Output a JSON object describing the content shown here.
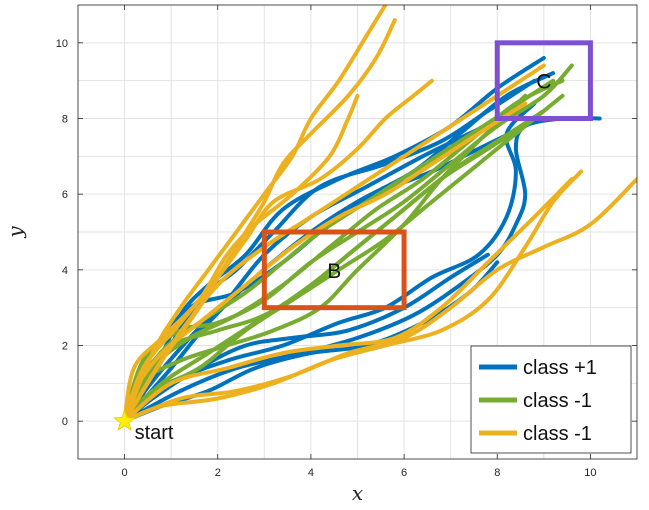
{
  "chart_data": {
    "type": "line",
    "title": "",
    "xlabel": "x",
    "ylabel": "y",
    "xlim": [
      -1,
      11
    ],
    "ylim": [
      -1,
      11
    ],
    "xticks": [
      0,
      2,
      4,
      6,
      8,
      10
    ],
    "yticks": [
      0,
      2,
      4,
      6,
      8,
      10
    ],
    "grid": true,
    "legend_position": "bottom-right",
    "start": {
      "x": 0,
      "y": 0,
      "label": "start",
      "color": "#ffee00"
    },
    "regions": [
      {
        "label": "B",
        "x": [
          3,
          6
        ],
        "y": [
          3,
          5
        ],
        "color": "#d95319"
      },
      {
        "label": "C",
        "x": [
          8,
          10
        ],
        "y": [
          8,
          10
        ],
        "color": "#7e4fd0"
      }
    ],
    "series": [
      {
        "name": "class +1",
        "color": "#0072bd",
        "trajectories": [
          [
            [
              0,
              0
            ],
            [
              0.6,
              1.2
            ],
            [
              1.2,
              2.8
            ],
            [
              1.8,
              3.6
            ],
            [
              2.6,
              4.4
            ],
            [
              3.4,
              5.6
            ],
            [
              4.6,
              6.4
            ],
            [
              5.8,
              7.0
            ],
            [
              7.0,
              7.8
            ],
            [
              8.0,
              8.8
            ],
            [
              9.0,
              9.6
            ]
          ],
          [
            [
              0,
              0
            ],
            [
              0.8,
              1.6
            ],
            [
              1.6,
              3.2
            ],
            [
              2.4,
              4.0
            ],
            [
              3.2,
              5.0
            ],
            [
              4.2,
              6.2
            ],
            [
              5.6,
              6.8
            ],
            [
              6.8,
              7.4
            ],
            [
              7.8,
              8.2
            ],
            [
              8.8,
              9.0
            ]
          ],
          [
            [
              0,
              0
            ],
            [
              0.5,
              0.9
            ],
            [
              1.4,
              2.2
            ],
            [
              2.2,
              3.2
            ],
            [
              3.0,
              4.4
            ],
            [
              4.0,
              5.4
            ],
            [
              5.2,
              6.2
            ],
            [
              6.4,
              7.0
            ],
            [
              7.4,
              7.6
            ],
            [
              8.4,
              8.2
            ]
          ],
          [
            [
              0,
              0
            ],
            [
              1.0,
              1.4
            ],
            [
              1.8,
              2.6
            ],
            [
              2.8,
              3.8
            ],
            [
              4.0,
              5.0
            ],
            [
              5.0,
              5.8
            ],
            [
              6.2,
              6.6
            ],
            [
              7.2,
              7.6
            ],
            [
              8.2,
              8.6
            ],
            [
              9.2,
              9.2
            ]
          ],
          [
            [
              0,
              0
            ],
            [
              1.2,
              0.8
            ],
            [
              2.4,
              1.4
            ],
            [
              3.8,
              1.8
            ],
            [
              5.0,
              2.2
            ],
            [
              6.2,
              2.8
            ],
            [
              7.2,
              3.6
            ],
            [
              8.0,
              4.4
            ],
            [
              8.4,
              5.2
            ],
            [
              8.6,
              6.0
            ],
            [
              8.4,
              7.2
            ],
            [
              8.6,
              7.8
            ],
            [
              9.4,
              8.0
            ],
            [
              10.2,
              8.0
            ]
          ],
          [
            [
              0,
              0
            ],
            [
              1.0,
              1.0
            ],
            [
              2.2,
              1.6
            ],
            [
              3.4,
              2.0
            ],
            [
              4.6,
              2.6
            ],
            [
              5.6,
              3.0
            ],
            [
              6.6,
              3.8
            ],
            [
              7.6,
              4.4
            ],
            [
              8.2,
              5.4
            ],
            [
              8.4,
              6.6
            ],
            [
              8.2,
              7.6
            ],
            [
              8.8,
              8.4
            ]
          ],
          [
            [
              0,
              0
            ],
            [
              0.6,
              0.6
            ],
            [
              1.6,
              1.4
            ],
            [
              2.6,
              2.0
            ],
            [
              3.6,
              2.2
            ],
            [
              4.8,
              2.4
            ],
            [
              6.0,
              3.0
            ],
            [
              7.0,
              3.8
            ],
            [
              7.8,
              4.4
            ]
          ],
          [
            [
              0,
              0
            ],
            [
              0.8,
              0.4
            ],
            [
              1.8,
              0.8
            ],
            [
              2.8,
              1.4
            ],
            [
              4.0,
              1.8
            ],
            [
              5.2,
              2.0
            ],
            [
              6.4,
              2.6
            ],
            [
              7.4,
              3.4
            ],
            [
              8.0,
              4.2
            ]
          ],
          [
            [
              0,
              0
            ],
            [
              0.6,
              1.8
            ],
            [
              1.4,
              3.0
            ],
            [
              2.4,
              3.4
            ],
            [
              3.4,
              4.2
            ],
            [
              4.4,
              5.2
            ],
            [
              5.4,
              6.0
            ],
            [
              6.6,
              6.6
            ],
            [
              7.6,
              7.2
            ],
            [
              8.6,
              7.8
            ]
          ]
        ]
      },
      {
        "name": "class -1",
        "color": "#77ac30",
        "trajectories": [
          [
            [
              0,
              0
            ],
            [
              0.4,
              1.6
            ],
            [
              1.2,
              2.4
            ],
            [
              2.0,
              2.6
            ],
            [
              3.0,
              3.2
            ],
            [
              4.0,
              4.2
            ],
            [
              5.0,
              5.0
            ],
            [
              6.0,
              5.8
            ],
            [
              7.0,
              6.8
            ],
            [
              8.0,
              7.8
            ],
            [
              9.0,
              8.6
            ],
            [
              9.6,
              9.4
            ]
          ],
          [
            [
              0,
              0
            ],
            [
              0.6,
              1.4
            ],
            [
              1.4,
              2.2
            ],
            [
              2.4,
              2.8
            ],
            [
              3.4,
              3.6
            ],
            [
              4.4,
              4.6
            ],
            [
              5.4,
              5.6
            ],
            [
              6.4,
              6.4
            ],
            [
              7.4,
              7.4
            ],
            [
              8.4,
              8.4
            ],
            [
              9.4,
              9.0
            ]
          ],
          [
            [
              0,
              0
            ],
            [
              0.8,
              1.0
            ],
            [
              1.8,
              1.8
            ],
            [
              2.8,
              2.6
            ],
            [
              3.8,
              3.4
            ],
            [
              4.8,
              4.4
            ],
            [
              5.8,
              5.4
            ],
            [
              6.8,
              6.4
            ],
            [
              7.8,
              7.2
            ],
            [
              8.8,
              8.0
            ]
          ],
          [
            [
              0,
              0
            ],
            [
              0.6,
              0.8
            ],
            [
              1.6,
              1.4
            ],
            [
              2.6,
              2.4
            ],
            [
              3.6,
              3.2
            ],
            [
              4.6,
              4.0
            ],
            [
              5.6,
              4.8
            ],
            [
              6.6,
              5.8
            ],
            [
              7.6,
              6.8
            ],
            [
              8.6,
              7.8
            ],
            [
              9.4,
              8.6
            ]
          ],
          [
            [
              0,
              0
            ],
            [
              0.4,
              1.2
            ],
            [
              1.0,
              2.0
            ],
            [
              2.0,
              2.4
            ],
            [
              3.0,
              2.8
            ],
            [
              4.0,
              3.6
            ],
            [
              5.0,
              4.6
            ],
            [
              6.0,
              5.6
            ],
            [
              7.0,
              6.6
            ],
            [
              8.0,
              7.4
            ],
            [
              9.0,
              8.2
            ]
          ],
          [
            [
              0,
              0
            ],
            [
              0.7,
              1.7
            ],
            [
              1.6,
              2.6
            ],
            [
              2.6,
              3.4
            ],
            [
              3.4,
              4.2
            ],
            [
              4.2,
              5.0
            ],
            [
              5.2,
              5.8
            ],
            [
              6.2,
              6.6
            ],
            [
              7.2,
              7.4
            ],
            [
              8.2,
              8.2
            ],
            [
              9.2,
              9.0
            ]
          ],
          [
            [
              0,
              0
            ],
            [
              0.3,
              1.0
            ],
            [
              1.2,
              1.6
            ],
            [
              2.2,
              2.0
            ],
            [
              3.2,
              2.4
            ],
            [
              4.2,
              3.0
            ],
            [
              5.0,
              4.0
            ],
            [
              6.0,
              5.2
            ],
            [
              6.8,
              6.4
            ],
            [
              7.6,
              7.4
            ],
            [
              8.6,
              8.6
            ]
          ]
        ]
      },
      {
        "name": "class -1",
        "color": "#edb120",
        "trajectories": [
          [
            [
              0,
              0
            ],
            [
              0.6,
              1.8
            ],
            [
              1.2,
              3.0
            ],
            [
              1.8,
              4.0
            ],
            [
              2.4,
              5.0
            ],
            [
              3.0,
              6.0
            ],
            [
              3.6,
              7.0
            ],
            [
              4.0,
              8.0
            ],
            [
              4.6,
              9.0
            ],
            [
              5.2,
              10.2
            ],
            [
              5.6,
              11.0
            ]
          ],
          [
            [
              0,
              0
            ],
            [
              0.8,
              1.6
            ],
            [
              1.6,
              3.0
            ],
            [
              2.2,
              4.2
            ],
            [
              2.6,
              5.0
            ],
            [
              3.0,
              5.8
            ],
            [
              3.4,
              6.8
            ],
            [
              4.0,
              7.6
            ],
            [
              4.8,
              8.6
            ],
            [
              5.4,
              9.6
            ],
            [
              5.8,
              10.6
            ]
          ],
          [
            [
              0,
              0
            ],
            [
              0.4,
              1.4
            ],
            [
              1.2,
              2.6
            ],
            [
              2.0,
              3.8
            ],
            [
              2.6,
              4.8
            ],
            [
              3.2,
              5.8
            ],
            [
              4.2,
              6.4
            ],
            [
              5.0,
              7.2
            ],
            [
              5.6,
              8.0
            ],
            [
              6.2,
              8.6
            ],
            [
              6.6,
              9.0
            ]
          ],
          [
            [
              0,
              0
            ],
            [
              1.0,
              2.0
            ],
            [
              2.0,
              3.6
            ],
            [
              3.0,
              4.6
            ],
            [
              4.0,
              5.4
            ],
            [
              5.0,
              6.2
            ],
            [
              6.0,
              7.0
            ],
            [
              7.0,
              7.8
            ],
            [
              8.0,
              8.6
            ],
            [
              9.0,
              9.4
            ]
          ],
          [
            [
              0,
              0
            ],
            [
              0.2,
              1.4
            ],
            [
              0.8,
              2.2
            ],
            [
              1.6,
              3.2
            ],
            [
              2.2,
              4.4
            ],
            [
              2.8,
              5.2
            ],
            [
              3.6,
              6.0
            ],
            [
              4.4,
              7.0
            ],
            [
              4.8,
              8.0
            ],
            [
              5.0,
              8.6
            ]
          ],
          [
            [
              0,
              0
            ],
            [
              1.2,
              0.6
            ],
            [
              2.4,
              0.8
            ],
            [
              3.6,
              1.2
            ],
            [
              4.8,
              1.8
            ],
            [
              6.0,
              2.2
            ],
            [
              7.0,
              3.0
            ],
            [
              8.0,
              4.0
            ],
            [
              9.0,
              4.6
            ],
            [
              10.0,
              5.2
            ],
            [
              11.0,
              6.4
            ]
          ],
          [
            [
              0,
              0
            ],
            [
              1.0,
              1.0
            ],
            [
              2.2,
              1.4
            ],
            [
              3.4,
              1.8
            ],
            [
              4.6,
              2.0
            ],
            [
              5.8,
              2.2
            ],
            [
              6.8,
              3.0
            ],
            [
              7.8,
              4.2
            ],
            [
              8.8,
              5.4
            ],
            [
              9.6,
              6.4
            ]
          ],
          [
            [
              0,
              0
            ],
            [
              0.8,
              0.4
            ],
            [
              2.0,
              0.6
            ],
            [
              3.2,
              1.0
            ],
            [
              4.4,
              1.6
            ],
            [
              5.6,
              2.0
            ],
            [
              6.8,
              2.4
            ],
            [
              7.8,
              3.2
            ],
            [
              8.6,
              4.6
            ],
            [
              9.2,
              5.8
            ],
            [
              9.8,
              6.6
            ]
          ],
          [
            [
              0,
              0
            ],
            [
              0.2,
              0.8
            ],
            [
              0.8,
              1.8
            ],
            [
              1.6,
              2.6
            ],
            [
              2.6,
              3.6
            ],
            [
              3.6,
              4.6
            ],
            [
              4.6,
              5.4
            ],
            [
              5.6,
              6.0
            ],
            [
              6.6,
              6.8
            ],
            [
              7.6,
              7.6
            ],
            [
              8.6,
              8.4
            ]
          ]
        ]
      }
    ]
  }
}
